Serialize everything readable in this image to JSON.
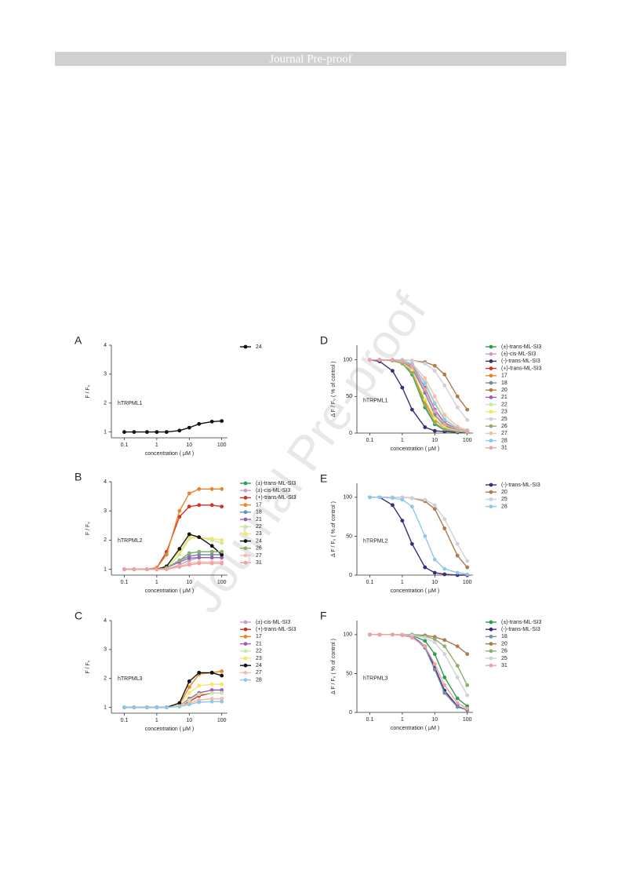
{
  "header": {
    "title": "Journal Pre-proof"
  },
  "watermark": "Journal Pre-proof",
  "chart_data": [
    {
      "type": "line",
      "label": "A",
      "annotation": "hTRPML1",
      "xlabel": "concentration ( μM )",
      "ylabel": "F / F₀",
      "xscale": "log",
      "x": [
        0.1,
        0.2,
        0.5,
        1,
        2,
        5,
        10,
        20,
        50,
        100
      ],
      "xlim": [
        0.04,
        150
      ],
      "xticks": [
        0.1,
        1,
        10,
        100
      ],
      "ylim": [
        0.8,
        4
      ],
      "yticks": [
        1,
        2,
        3,
        4
      ],
      "series": [
        {
          "name": "24",
          "color": "#111111",
          "values": [
            1,
            1,
            1,
            1,
            1,
            1.05,
            1.15,
            1.28,
            1.36,
            1.38
          ]
        }
      ]
    },
    {
      "type": "line",
      "label": "B",
      "annotation": "hTRPML2",
      "xlabel": "concentration ( μM )",
      "ylabel": "F / F₀",
      "xscale": "log",
      "x": [
        0.1,
        0.2,
        0.5,
        1,
        2,
        5,
        10,
        20,
        50,
        100
      ],
      "xlim": [
        0.04,
        150
      ],
      "xticks": [
        0.1,
        1,
        10,
        100
      ],
      "ylim": [
        0.8,
        4
      ],
      "yticks": [
        1,
        2,
        3,
        4
      ],
      "series": [
        {
          "name": "(±)-trans-ML-SI3",
          "color": "#2e9e4f",
          "values": [
            1,
            1,
            1,
            1,
            1.05,
            1.3,
            1.55,
            1.6,
            1.6,
            1.6
          ]
        },
        {
          "name": "(±)-cis-ML-SI3",
          "color": "#c9a0c0",
          "values": [
            1,
            1,
            1,
            1,
            1,
            1.15,
            1.3,
            1.4,
            1.4,
            1.4
          ]
        },
        {
          "name": "(+)-trans-ML-SI3",
          "color": "#d6312b",
          "values": [
            1,
            1,
            1,
            1.05,
            1.6,
            2.8,
            3.15,
            3.2,
            3.2,
            3.15
          ]
        },
        {
          "name": "17",
          "color": "#e8842a",
          "values": [
            1,
            1,
            1,
            1.05,
            1.5,
            3,
            3.6,
            3.75,
            3.75,
            3.75
          ]
        },
        {
          "name": "18",
          "color": "#6f8fa8",
          "values": [
            1,
            1,
            1,
            1,
            1.05,
            1.3,
            1.45,
            1.5,
            1.5,
            1.5
          ]
        },
        {
          "name": "21",
          "color": "#9a5fb0",
          "values": [
            1,
            1,
            1,
            1,
            1.05,
            1.25,
            1.38,
            1.4,
            1.4,
            1.4
          ]
        },
        {
          "name": "22",
          "color": "#cde6a8",
          "values": [
            1,
            1,
            1,
            1,
            1.05,
            1.5,
            2.05,
            2.1,
            2,
            1.9
          ]
        },
        {
          "name": "23",
          "color": "#f5e66a",
          "values": [
            1,
            1,
            1,
            1,
            1.1,
            1.6,
            2.1,
            2.1,
            2.05,
            2
          ]
        },
        {
          "name": "24",
          "color": "#111111",
          "values": [
            1,
            1,
            1,
            1,
            1.1,
            1.7,
            2.2,
            2.1,
            1.8,
            1.5
          ]
        },
        {
          "name": "26",
          "color": "#8fae6a",
          "values": [
            1,
            1,
            1,
            1,
            1.05,
            1.3,
            1.55,
            1.6,
            1.6,
            1.6
          ]
        },
        {
          "name": "27",
          "color": "#f2c0a8",
          "values": [
            1,
            1,
            1,
            1,
            1,
            1.1,
            1.2,
            1.25,
            1.25,
            1.25
          ]
        },
        {
          "name": "31",
          "color": "#f0a0a8",
          "values": [
            1,
            1,
            1,
            1,
            1,
            1.08,
            1.15,
            1.2,
            1.2,
            1.2
          ]
        }
      ]
    },
    {
      "type": "line",
      "label": "C",
      "annotation": "hTRPML3",
      "xlabel": "concentration ( μM )",
      "ylabel": "F / F₀",
      "xscale": "log",
      "x": [
        0.1,
        0.2,
        0.5,
        1,
        2,
        5,
        10,
        20,
        50,
        100
      ],
      "xlim": [
        0.04,
        150
      ],
      "xticks": [
        0.1,
        1,
        10,
        100
      ],
      "ylim": [
        0.8,
        4
      ],
      "yticks": [
        1,
        2,
        3,
        4
      ],
      "series": [
        {
          "name": "(±)-cis-ML-SI3",
          "color": "#c9a0c0",
          "values": [
            1,
            1,
            1,
            1,
            1,
            1.05,
            1.15,
            1.25,
            1.3,
            1.3
          ]
        },
        {
          "name": "(+)-trans-ML-SI3",
          "color": "#d6312b",
          "values": [
            1,
            1,
            1,
            1,
            1,
            1.05,
            1.2,
            1.4,
            1.5,
            1.5
          ]
        },
        {
          "name": "17",
          "color": "#e8842a",
          "values": [
            1,
            1,
            1,
            1,
            1,
            1.1,
            1.7,
            2.15,
            2.2,
            2.25
          ]
        },
        {
          "name": "21",
          "color": "#9a5fb0",
          "values": [
            1,
            1,
            1,
            1,
            1,
            1.05,
            1.3,
            1.5,
            1.6,
            1.6
          ]
        },
        {
          "name": "22",
          "color": "#cde6a8",
          "values": [
            1,
            1,
            1,
            1,
            1,
            1.05,
            1.25,
            1.45,
            1.5,
            1.5
          ]
        },
        {
          "name": "23",
          "color": "#f5e66a",
          "values": [
            1,
            1,
            1,
            1,
            1,
            1.1,
            1.5,
            1.75,
            1.8,
            1.8
          ]
        },
        {
          "name": "24",
          "color": "#111111",
          "values": [
            1,
            1,
            1,
            1,
            1,
            1.15,
            1.9,
            2.2,
            2.2,
            2.1
          ]
        },
        {
          "name": "27",
          "color": "#f2c0a8",
          "values": [
            1,
            1,
            1,
            1,
            1,
            1.05,
            1.15,
            1.25,
            1.3,
            1.3
          ]
        },
        {
          "name": "28",
          "color": "#8ec8e8",
          "values": [
            1,
            1,
            1,
            1,
            1,
            1.03,
            1.1,
            1.18,
            1.2,
            1.2
          ]
        }
      ]
    },
    {
      "type": "line",
      "label": "D",
      "annotation": "hTRPML1",
      "xlabel": "concentration ( μM )",
      "ylabel": "Δ F / F₀ ( % of control )",
      "xscale": "log",
      "x": [
        0.1,
        0.2,
        0.5,
        1,
        2,
        5,
        10,
        20,
        50,
        100
      ],
      "xlim": [
        0.04,
        150
      ],
      "xticks": [
        0.1,
        1,
        10,
        100
      ],
      "ylim": [
        0,
        120
      ],
      "yticks": [
        0,
        50,
        100
      ],
      "series": [
        {
          "name": "(±)-trans-ML-SI3",
          "color": "#2e9e4f",
          "values": [
            100,
            100,
            99,
            95,
            80,
            35,
            12,
            4,
            2,
            1
          ]
        },
        {
          "name": "(±)-cis-ML-SI3",
          "color": "#c9a0c0",
          "values": [
            100,
            100,
            100,
            97,
            88,
            55,
            25,
            10,
            4,
            2
          ]
        },
        {
          "name": "(-)-trans-ML-SI3",
          "color": "#3a2c7a",
          "values": [
            100,
            98,
            85,
            62,
            32,
            8,
            3,
            2,
            1,
            1
          ]
        },
        {
          "name": "(+)-trans-ML-SI3",
          "color": "#d6312b",
          "values": [
            100,
            100,
            99,
            96,
            86,
            45,
            20,
            8,
            3,
            2
          ]
        },
        {
          "name": "17",
          "color": "#e8842a",
          "values": [
            100,
            100,
            99,
            95,
            84,
            42,
            18,
            7,
            3,
            2
          ]
        },
        {
          "name": "18",
          "color": "#6f8fa8",
          "values": [
            100,
            100,
            99,
            97,
            90,
            55,
            25,
            10,
            4,
            2
          ]
        },
        {
          "name": "20",
          "color": "#b07a4a",
          "values": [
            100,
            100,
            100,
            100,
            99,
            97,
            92,
            80,
            50,
            32
          ]
        },
        {
          "name": "21",
          "color": "#9a5fb0",
          "values": [
            100,
            100,
            100,
            98,
            92,
            62,
            32,
            14,
            5,
            3
          ]
        },
        {
          "name": "22",
          "color": "#cde6a8",
          "values": [
            100,
            100,
            100,
            99,
            94,
            70,
            42,
            20,
            7,
            4
          ]
        },
        {
          "name": "23",
          "color": "#f5e66a",
          "values": [
            100,
            100,
            99,
            96,
            86,
            46,
            20,
            8,
            3,
            2
          ]
        },
        {
          "name": "25",
          "color": "#d0d0d8",
          "values": [
            100,
            100,
            100,
            100,
            99,
            95,
            85,
            65,
            35,
            18
          ]
        },
        {
          "name": "26",
          "color": "#8fae6a",
          "values": [
            100,
            100,
            99,
            95,
            82,
            38,
            14,
            5,
            2,
            1
          ]
        },
        {
          "name": "27",
          "color": "#f2c0a8",
          "values": [
            100,
            100,
            100,
            99,
            95,
            75,
            50,
            25,
            9,
            4
          ]
        },
        {
          "name": "28",
          "color": "#8ec8e8",
          "values": [
            100,
            100,
            100,
            99,
            94,
            68,
            40,
            18,
            6,
            3
          ]
        },
        {
          "name": "31",
          "color": "#f0a0a8",
          "values": [
            100,
            100,
            100,
            98,
            91,
            60,
            30,
            12,
            5,
            2
          ]
        }
      ]
    },
    {
      "type": "line",
      "label": "E",
      "annotation": "hTRPML2",
      "xlabel": "concentration ( μM )",
      "ylabel": "Δ F / F₀ ( % of control )",
      "xscale": "log",
      "x": [
        0.1,
        0.2,
        0.5,
        1,
        2,
        5,
        10,
        20,
        50,
        100
      ],
      "xlim": [
        0.04,
        150
      ],
      "xticks": [
        0.1,
        1,
        10,
        100
      ],
      "ylim": [
        0,
        118
      ],
      "yticks": [
        0,
        50,
        100
      ],
      "series": [
        {
          "name": "(-)-trans-ML-SI3",
          "color": "#3a2c7a",
          "values": [
            100,
            100,
            90,
            70,
            40,
            10,
            3,
            1,
            0,
            0
          ]
        },
        {
          "name": "20",
          "color": "#b07a4a",
          "values": [
            100,
            100,
            100,
            100,
            99,
            95,
            85,
            60,
            25,
            10
          ]
        },
        {
          "name": "25",
          "color": "#d0d0d8",
          "values": [
            100,
            100,
            100,
            100,
            99,
            97,
            90,
            72,
            40,
            18
          ]
        },
        {
          "name": "28",
          "color": "#8ec8e8",
          "values": [
            100,
            100,
            99,
            97,
            88,
            50,
            20,
            8,
            3,
            1
          ]
        }
      ]
    },
    {
      "type": "line",
      "label": "F",
      "annotation": "hTRPML3",
      "xlabel": "concentration ( μM )",
      "ylabel": "Δ F / F₀ ( % of control )",
      "xscale": "log",
      "x": [
        0.1,
        0.2,
        0.5,
        1,
        2,
        5,
        10,
        20,
        50,
        100
      ],
      "xlim": [
        0.04,
        150
      ],
      "xticks": [
        0.1,
        1,
        10,
        100
      ],
      "ylim": [
        0,
        118
      ],
      "yticks": [
        0,
        50,
        100
      ],
      "series": [
        {
          "name": "(±)-trans-ML-SI3",
          "color": "#2e9e4f",
          "values": [
            100,
            100,
            100,
            100,
            99,
            92,
            75,
            45,
            18,
            8
          ]
        },
        {
          "name": "(-)-trans-ML-SI3",
          "color": "#3a2c7a",
          "values": [
            100,
            100,
            100,
            100,
            98,
            85,
            58,
            28,
            8,
            3
          ]
        },
        {
          "name": "18",
          "color": "#6f8fa8",
          "values": [
            100,
            100,
            100,
            100,
            98,
            83,
            55,
            25,
            7,
            3
          ]
        },
        {
          "name": "20",
          "color": "#b07a4a",
          "values": [
            100,
            100,
            100,
            100,
            100,
            99,
            97,
            93,
            85,
            75
          ]
        },
        {
          "name": "26",
          "color": "#8fae6a",
          "values": [
            100,
            100,
            100,
            100,
            100,
            98,
            94,
            85,
            60,
            35
          ]
        },
        {
          "name": "25",
          "color": "#d0d0d8",
          "values": [
            100,
            100,
            100,
            100,
            99,
            96,
            90,
            75,
            45,
            22
          ]
        },
        {
          "name": "31",
          "color": "#f0a0a8",
          "values": [
            100,
            100,
            100,
            99,
            96,
            85,
            62,
            35,
            12,
            5
          ]
        }
      ]
    }
  ]
}
